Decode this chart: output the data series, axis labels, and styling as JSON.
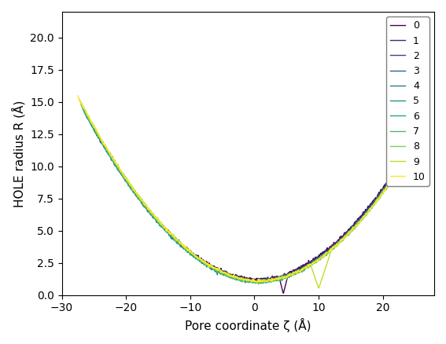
{
  "title": "",
  "xlabel": "Pore coordinate ζ (Å)",
  "ylabel": "HOLE radius R (Å)",
  "n_lines": 11,
  "xlim": [
    -30,
    28
  ],
  "ylim": [
    0,
    22
  ],
  "legend_labels": [
    "0",
    "1",
    "2",
    "3",
    "4",
    "5",
    "6",
    "7",
    "8",
    "9",
    "10"
  ],
  "colormap": "plasma_r_viridis",
  "colors": [
    "#3b0f6f",
    "#440f76",
    "#30678d",
    "#35b778",
    "#1f9d89",
    "#26828e",
    "#1fa187",
    "#3dbc74",
    "#6cce5a",
    "#b5de2b",
    "#fde725"
  ],
  "background": "#ffffff"
}
